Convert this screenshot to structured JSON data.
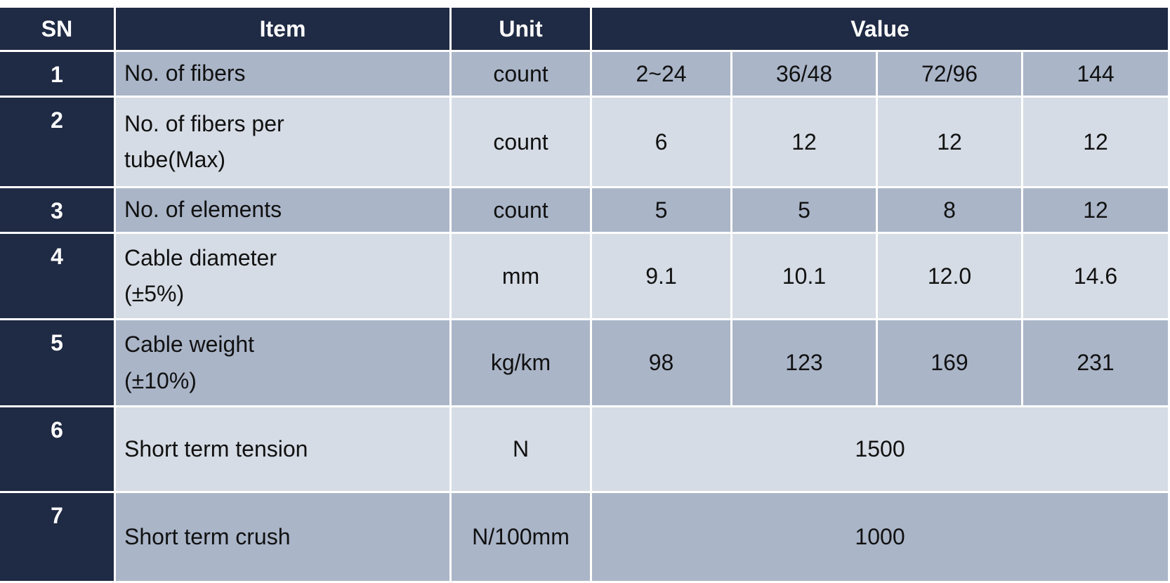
{
  "header": {
    "sn": "SN",
    "item": "Item",
    "unit": "Unit",
    "value": "Value"
  },
  "rows": [
    {
      "sn": "1",
      "item": "No. of fibers",
      "unit": "count",
      "values": [
        "2~24",
        "36/48",
        "72/96",
        "144"
      ]
    },
    {
      "sn": "2",
      "item": "No. of fibers per tube(Max)",
      "unit": "count",
      "values": [
        "6",
        "12",
        "12",
        "12"
      ]
    },
    {
      "sn": "3",
      "item": "No. of elements",
      "unit": "count",
      "values": [
        "5",
        "5",
        "8",
        "12"
      ]
    },
    {
      "sn": "4",
      "item": "Cable diameter (±5%)",
      "unit": "mm",
      "values": [
        "9.1",
        "10.1",
        "12.0",
        "14.6"
      ]
    },
    {
      "sn": "5",
      "item": "Cable weight (±10%)",
      "unit": "kg/km",
      "values": [
        "98",
        "123",
        "169",
        "231"
      ]
    },
    {
      "sn": "6",
      "item": "Short term tension",
      "unit": "N",
      "values": [
        "1500"
      ]
    },
    {
      "sn": "7",
      "item": "Short term crush",
      "unit": "N/100mm",
      "values": [
        "1000"
      ]
    }
  ]
}
